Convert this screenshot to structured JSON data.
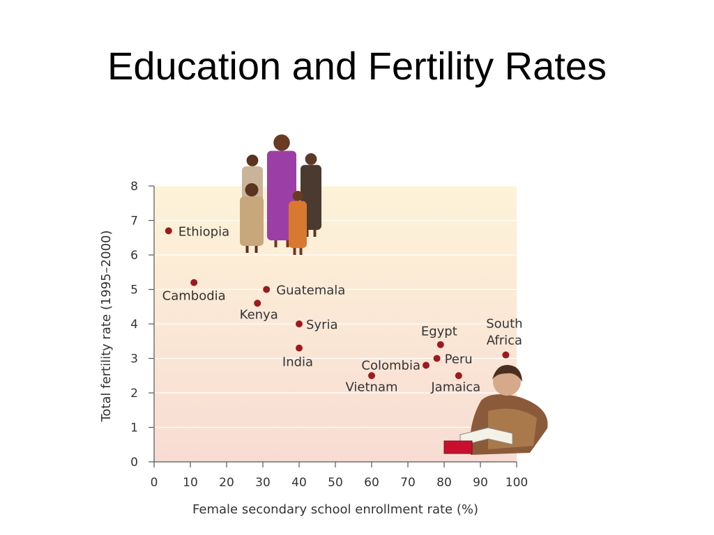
{
  "title": "Education and Fertility Rates",
  "chart_data": {
    "type": "scatter",
    "xlabel": "Female secondary school enrollment rate (%)",
    "ylabel": "Total fertility rate (1995–2000)",
    "xlim": [
      0,
      100
    ],
    "ylim": [
      0,
      8
    ],
    "xticks": [
      0,
      10,
      20,
      30,
      40,
      50,
      60,
      70,
      80,
      90,
      100
    ],
    "yticks": [
      0,
      1,
      2,
      3,
      4,
      5,
      6,
      7,
      8
    ],
    "grid": "horizontal",
    "points": [
      {
        "label": "Ethiopia",
        "x": 4,
        "y": 6.7
      },
      {
        "label": "Cambodia",
        "x": 11,
        "y": 5.2
      },
      {
        "label": "Guatemala",
        "x": 31,
        "y": 5.0
      },
      {
        "label": "Kenya",
        "x": 28.5,
        "y": 4.6
      },
      {
        "label": "Syria",
        "x": 40,
        "y": 4.0
      },
      {
        "label": "India",
        "x": 40,
        "y": 3.3
      },
      {
        "label": "Vietnam",
        "x": 60,
        "y": 2.5
      },
      {
        "label": "Colombia",
        "x": 75,
        "y": 2.8
      },
      {
        "label": "Egypt",
        "x": 79,
        "y": 3.4
      },
      {
        "label": "Peru",
        "x": 78,
        "y": 3.0
      },
      {
        "label": "Jamaica",
        "x": 84,
        "y": 2.5
      },
      {
        "label": "South Africa",
        "x": 97,
        "y": 3.1
      }
    ],
    "colors": {
      "point": "#9b1b1f",
      "band_top": "#fdf3d8",
      "band_bottom": "#f8dcd3"
    }
  }
}
